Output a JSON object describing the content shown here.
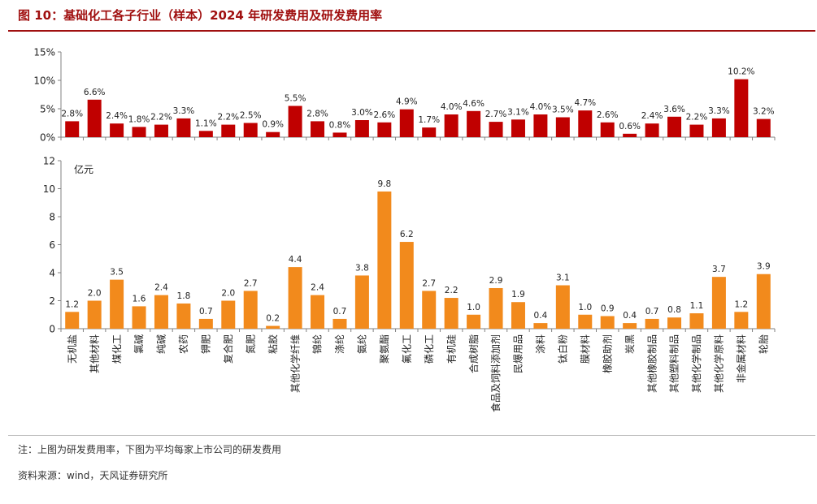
{
  "title": "图 10：基础化工各子行业（样本）2024 年研发费用及研发费用率",
  "note": "注：上图为研发费用率，下图为平均每家上市公司的研发费用",
  "source": "资料来源：wind，天风证券研究所",
  "colors": {
    "rate": "#c00000",
    "expense": "#f28a1c",
    "title": "#a01010",
    "axis": "#808080"
  },
  "chart_data": [
    {
      "type": "bar",
      "categories": [
        "无机盐",
        "其他材料",
        "煤化工",
        "氯碱",
        "纯碱",
        "农药",
        "钾肥",
        "复合肥",
        "氮肥",
        "粘胶",
        "其他化学纤维",
        "锦纶",
        "涤纶",
        "氨纶",
        "聚氨酯",
        "氟化工",
        "磷化工",
        "有机硅",
        "合成树脂",
        "食品及饲料添加剂",
        "民爆用品",
        "涂料",
        "钛白粉",
        "膜材料",
        "橡胶助剂",
        "炭黑",
        "其他橡胶制品",
        "其他塑料制品",
        "其他化学制品",
        "其他化学原料",
        "非金属材料",
        "轮胎"
      ],
      "values": [
        2.8,
        6.6,
        2.4,
        1.8,
        2.2,
        3.3,
        1.1,
        2.2,
        2.5,
        0.9,
        5.5,
        2.8,
        0.8,
        3.0,
        2.6,
        4.9,
        1.7,
        4.0,
        4.6,
        2.7,
        3.1,
        4.0,
        3.5,
        4.7,
        2.6,
        0.6,
        2.4,
        3.6,
        2.2,
        3.3,
        10.2,
        3.2
      ],
      "value_labels": [
        "2.8%",
        "6.6%",
        "2.4%",
        "1.8%",
        "2.2%",
        "3.3%",
        "1.1%",
        "2.2%",
        "2.5%",
        "0.9%",
        "5.5%",
        "2.8%",
        "0.8%",
        "3.0%",
        "2.6%",
        "4.9%",
        "1.7%",
        "4.0%",
        "4.6%",
        "2.7%",
        "3.1%",
        "4.0%",
        "3.5%",
        "4.7%",
        "2.6%",
        "0.6%",
        "2.4%",
        "3.6%",
        "2.2%",
        "3.3%",
        "10.2%",
        "3.2%"
      ],
      "ylim": [
        0,
        15
      ],
      "yticks": [
        "0%",
        "5%",
        "10%",
        "15%"
      ],
      "ytick_values": [
        0,
        5,
        10,
        15
      ],
      "grid": false
    },
    {
      "type": "bar",
      "categories": [
        "无机盐",
        "其他材料",
        "煤化工",
        "氯碱",
        "纯碱",
        "农药",
        "钾肥",
        "复合肥",
        "氮肥",
        "粘胶",
        "其他化学纤维",
        "锦纶",
        "涤纶",
        "氨纶",
        "聚氨酯",
        "氟化工",
        "磷化工",
        "有机硅",
        "合成树脂",
        "食品及饲料添加剂",
        "民爆用品",
        "涂料",
        "钛白粉",
        "膜材料",
        "橡胶助剂",
        "炭黑",
        "其他橡胶制品",
        "其他塑料制品",
        "其他化学制品",
        "其他化学原料",
        "非金属材料",
        "轮胎"
      ],
      "values": [
        1.2,
        2.0,
        3.5,
        1.6,
        2.4,
        1.8,
        0.7,
        2.0,
        2.7,
        0.2,
        4.4,
        2.4,
        0.7,
        3.8,
        9.8,
        6.2,
        2.7,
        2.2,
        1.0,
        2.9,
        1.9,
        0.4,
        3.1,
        1.0,
        0.9,
        0.4,
        0.7,
        0.8,
        1.1,
        3.7,
        1.2,
        3.9
      ],
      "value_labels": [
        "1.2",
        "2.0",
        "3.5",
        "1.6",
        "2.4",
        "1.8",
        "0.7",
        "2.0",
        "2.7",
        "0.2",
        "4.4",
        "2.4",
        "0.7",
        "3.8",
        "9.8",
        "6.2",
        "2.7",
        "2.2",
        "1.0",
        "2.9",
        "1.9",
        "0.4",
        "3.1",
        "1.0",
        "0.9",
        "0.4",
        "0.7",
        "0.8",
        "1.1",
        "3.7",
        "1.2",
        "3.9"
      ],
      "ylabel": "亿元",
      "ylim": [
        0,
        12
      ],
      "yticks": [
        "0",
        "2",
        "4",
        "6",
        "8",
        "10",
        "12"
      ],
      "ytick_values": [
        0,
        2,
        4,
        6,
        8,
        10,
        12
      ],
      "grid": false
    }
  ]
}
